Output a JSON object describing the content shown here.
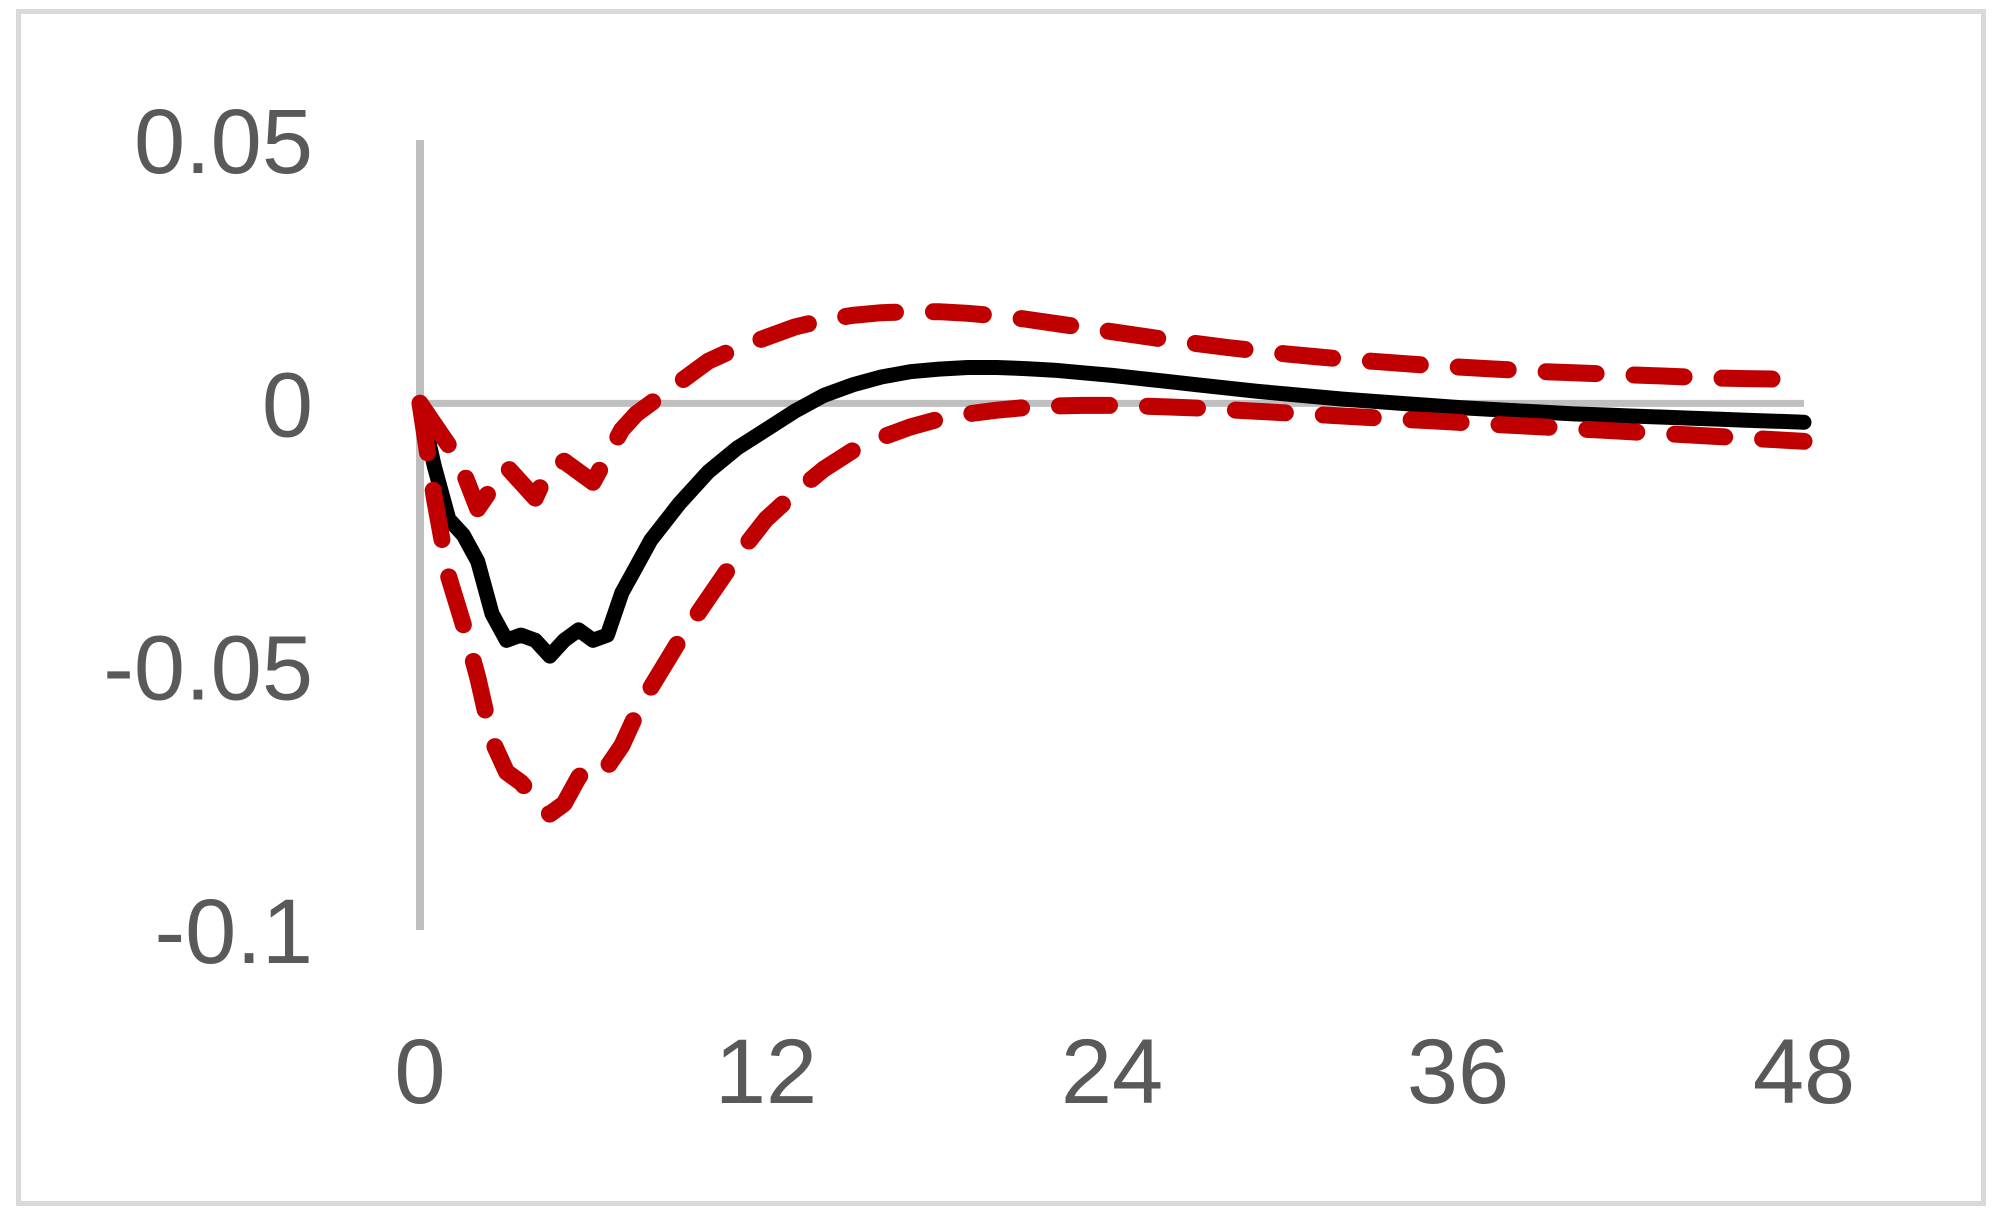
{
  "chart_data": {
    "type": "line",
    "title": "",
    "xlabel": "",
    "ylabel": "",
    "xlim": [
      0,
      48
    ],
    "ylim": [
      -0.1,
      0.05
    ],
    "x_ticks": [
      0,
      12,
      24,
      36,
      48
    ],
    "x_tick_labels": [
      "0",
      "12",
      "24",
      "36",
      "48"
    ],
    "y_ticks": [
      0.05,
      0,
      -0.05,
      -0.1
    ],
    "y_tick_labels": [
      "0.05",
      "0",
      "-0.05",
      "-0.1"
    ],
    "grid": false,
    "legend": "none",
    "colors": {
      "median": "#000000",
      "bands": "#c00000",
      "axes": "#bfbfbf",
      "ticks": "#595959"
    },
    "x": [
      0,
      0.5,
      1,
      1.5,
      2,
      2.5,
      3,
      3.5,
      4,
      4.5,
      5,
      5.5,
      6,
      6.5,
      7,
      7.5,
      8,
      9,
      10,
      11,
      12,
      13,
      14,
      15,
      16,
      17,
      18,
      19,
      20,
      21,
      22,
      23,
      24,
      25,
      26,
      27,
      28,
      29,
      30,
      31,
      32,
      33,
      34,
      35,
      36,
      37,
      38,
      39,
      40,
      41,
      42,
      43,
      44,
      45,
      46,
      47,
      48
    ],
    "series": [
      {
        "style": "solid",
        "values": [
          0,
          -0.012,
          -0.022,
          -0.025,
          -0.03,
          -0.04,
          -0.045,
          -0.044,
          -0.045,
          -0.048,
          -0.045,
          -0.043,
          -0.045,
          -0.044,
          -0.036,
          -0.031,
          -0.026,
          -0.019,
          -0.013,
          -0.0085,
          -0.005,
          -0.0015,
          0.0015,
          0.0035,
          0.005,
          0.006,
          0.0065,
          0.0068,
          0.0068,
          0.0066,
          0.0063,
          0.0058,
          0.0053,
          0.0047,
          0.0041,
          0.0035,
          0.0029,
          0.0023,
          0.0018,
          0.0013,
          0.0008,
          0.0004,
          0,
          -0.0004,
          -0.0008,
          -0.0011,
          -0.0014,
          -0.0017,
          -0.002,
          -0.0022,
          -0.0024,
          -0.0026,
          -0.0028,
          -0.003,
          -0.0032,
          -0.0034,
          -0.0036
        ]
      },
      {
        "style": "dashed",
        "values": [
          0,
          -0.004,
          -0.008,
          -0.013,
          -0.02,
          -0.016,
          -0.012,
          -0.015,
          -0.018,
          -0.012,
          -0.011,
          -0.013,
          -0.015,
          -0.01,
          -0.005,
          -0.002,
          0,
          0.004,
          0.008,
          0.0105,
          0.0125,
          0.0145,
          0.0158,
          0.0167,
          0.0172,
          0.0174,
          0.0174,
          0.0171,
          0.0166,
          0.016,
          0.0152,
          0.0144,
          0.0136,
          0.0128,
          0.012,
          0.0113,
          0.0106,
          0.01,
          0.0094,
          0.0089,
          0.0084,
          0.008,
          0.0076,
          0.0072,
          0.0069,
          0.0066,
          0.0063,
          0.006,
          0.0058,
          0.0056,
          0.0054,
          0.0052,
          0.005,
          0.0048,
          0.0047,
          0.0046,
          0.0045
        ]
      },
      {
        "style": "dashed",
        "values": [
          0,
          -0.018,
          -0.033,
          -0.042,
          -0.052,
          -0.064,
          -0.07,
          -0.072,
          -0.075,
          -0.078,
          -0.076,
          -0.071,
          -0.068,
          -0.069,
          -0.065,
          -0.059,
          -0.054,
          -0.045,
          -0.037,
          -0.029,
          -0.022,
          -0.017,
          -0.0125,
          -0.009,
          -0.0065,
          -0.0045,
          -0.003,
          -0.002,
          -0.0013,
          -0.0008,
          -0.0005,
          -0.0004,
          -0.0004,
          -0.0005,
          -0.0007,
          -0.0009,
          -0.0012,
          -0.0015,
          -0.0018,
          -0.0021,
          -0.0024,
          -0.0027,
          -0.003,
          -0.0033,
          -0.0036,
          -0.0039,
          -0.0042,
          -0.0045,
          -0.0048,
          -0.0051,
          -0.0054,
          -0.0057,
          -0.006,
          -0.0063,
          -0.0066,
          -0.0069,
          -0.0072
        ]
      }
    ]
  }
}
